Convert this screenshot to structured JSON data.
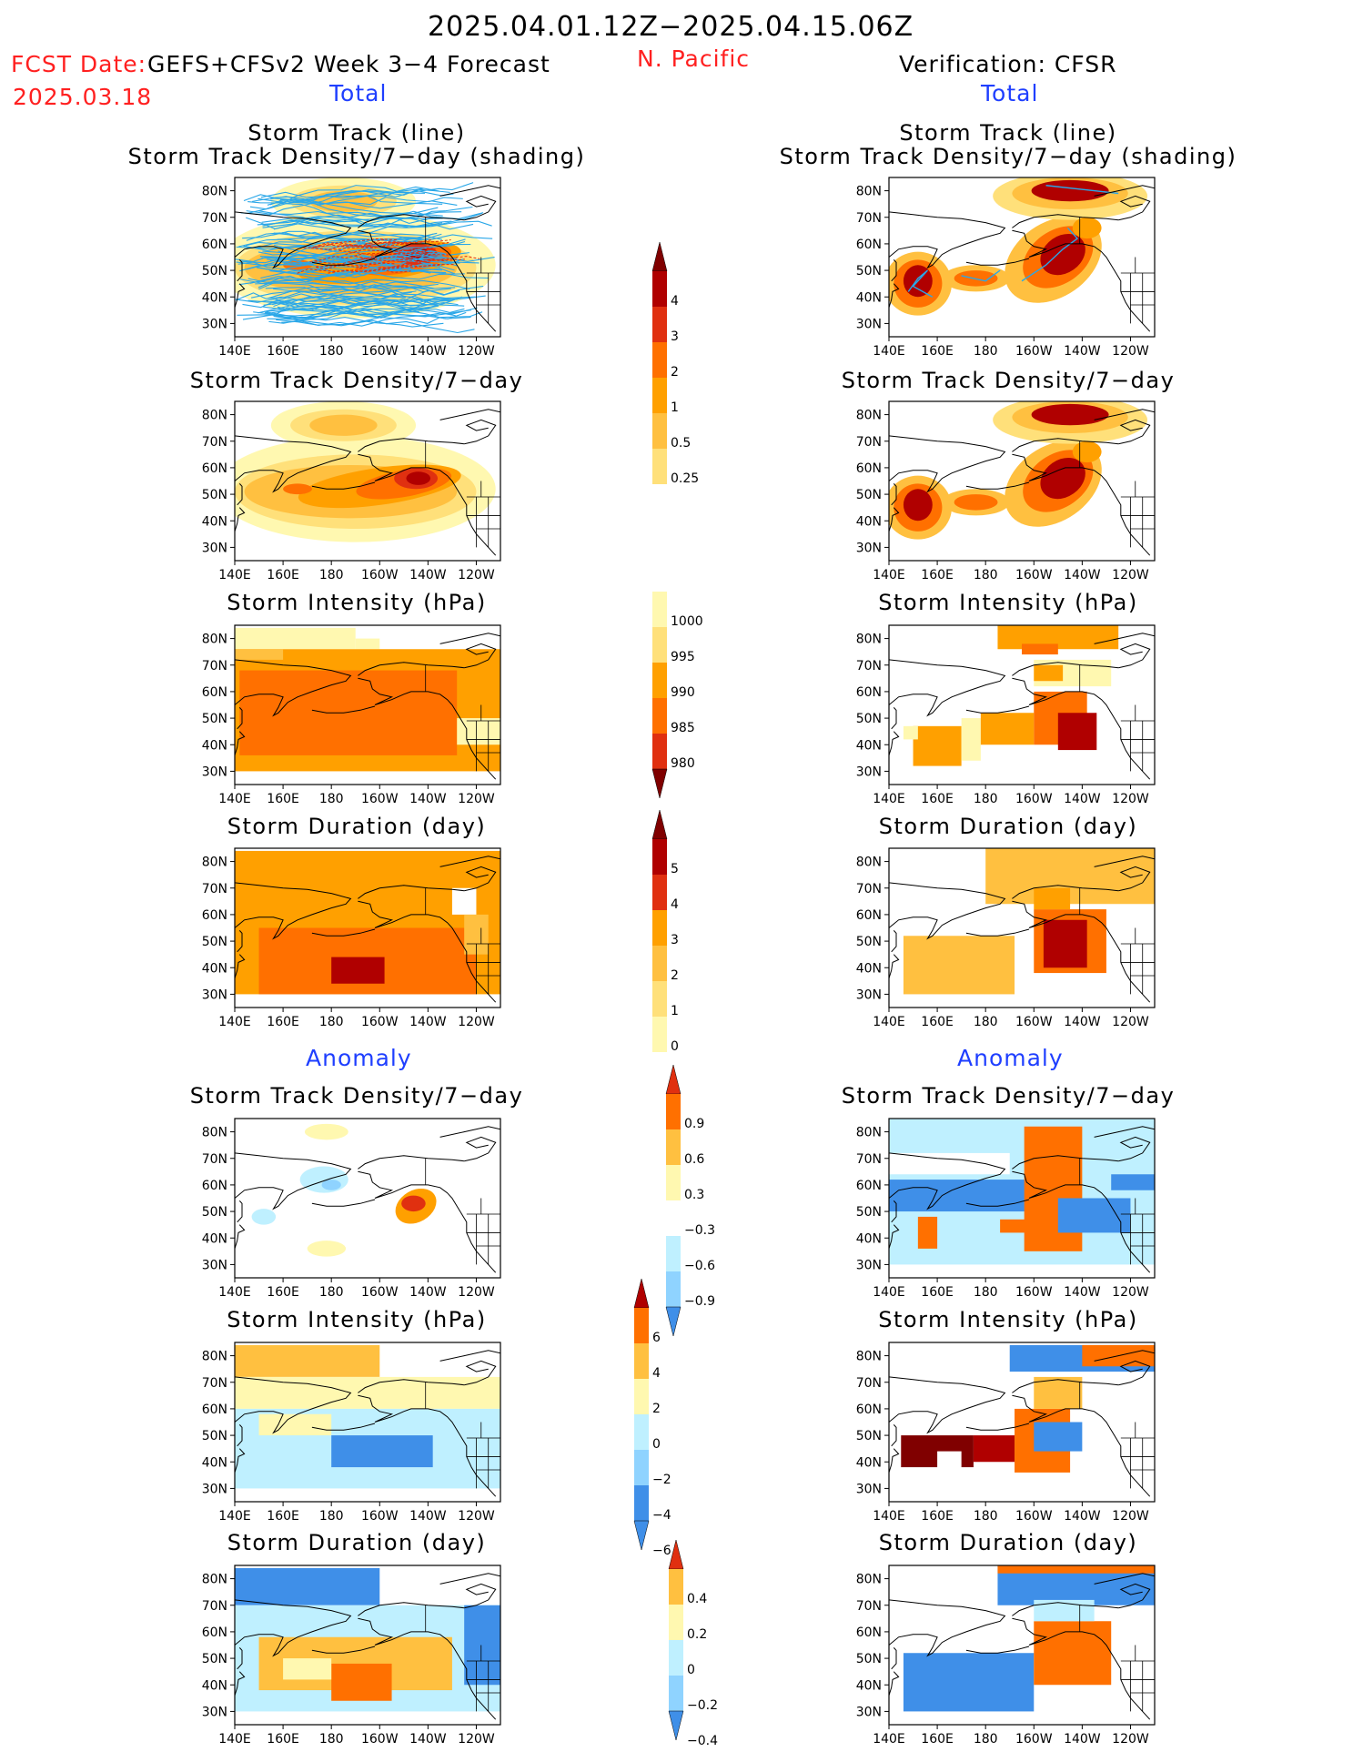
{
  "header": {
    "period": "2025.04.01.12Z−2025.04.15.06Z",
    "fcst_label": "FCST Date:",
    "fcst_model": "GEFS+CFSv2 Week 3−4 Forecast",
    "fcst_date": "2025.03.18",
    "region": "N. Pacific",
    "verification": "Verification: CFSR",
    "total_left": "Total",
    "total_right": "Total",
    "anomaly_left": "Anomaly",
    "anomaly_right": "Anomaly"
  },
  "panel_titles": {
    "track_line": "Storm Track (line)",
    "track_shading": "Storm Track Density/7−day (shading)",
    "density": "Storm Track Density/7−day",
    "intensity": "Storm Intensity (hPa)",
    "duration": "Storm Duration (day)"
  },
  "axes": {
    "lat_labels": [
      "80N",
      "70N",
      "60N",
      "50N",
      "40N",
      "30N"
    ],
    "lon_labels": [
      "140E",
      "160E",
      "180",
      "160W",
      "140W",
      "120W"
    ]
  },
  "colors": {
    "pos": [
      "#fff8b0",
      "#ffe07a",
      "#ffc040",
      "#ffa000",
      "#ff7000",
      "#e03010",
      "#b00000",
      "#800000"
    ],
    "neg": [
      "#bff0ff",
      "#8fd3ff",
      "#3f8fe8",
      "#1f5fd0",
      "#2060f0"
    ],
    "track_line": "#2aa7e8"
  },
  "chart_data": [
    {
      "id": "fc_track",
      "type": "heatmap",
      "title": "Storm Track (line) / Storm Track Density/7−day (shading)",
      "source": "GEFS+CFSv2",
      "colorbar": [
        0.25,
        0.5,
        1,
        2,
        3,
        4
      ]
    },
    {
      "id": "ob_track",
      "type": "heatmap",
      "title": "Storm Track (line) / Storm Track Density/7−day (shading)",
      "source": "CFSR"
    },
    {
      "id": "fc_density",
      "type": "heatmap",
      "title": "Storm Track Density/7−day",
      "source": "GEFS+CFSv2"
    },
    {
      "id": "ob_density",
      "type": "heatmap",
      "title": "Storm Track Density/7−day",
      "source": "CFSR"
    },
    {
      "id": "fc_intensity",
      "type": "heatmap",
      "title": "Storm Intensity (hPa)",
      "colorbar": [
        1000,
        995,
        990,
        985,
        980
      ]
    },
    {
      "id": "ob_intensity",
      "type": "heatmap",
      "title": "Storm Intensity (hPa)"
    },
    {
      "id": "fc_duration",
      "type": "heatmap",
      "title": "Storm Duration (day)",
      "colorbar": [
        5,
        4,
        3,
        2,
        1,
        0
      ]
    },
    {
      "id": "ob_duration",
      "type": "heatmap",
      "title": "Storm Duration (day)"
    },
    {
      "id": "fc_density_anom",
      "type": "heatmap",
      "title": "Storm Track Density/7−day",
      "colorbar": [
        0.9,
        0.6,
        0.3,
        -0.3,
        -0.6,
        -0.9
      ]
    },
    {
      "id": "ob_density_anom",
      "type": "heatmap",
      "title": "Storm Track Density/7−day"
    },
    {
      "id": "fc_intensity_anom",
      "type": "heatmap",
      "title": "Storm Intensity (hPa)",
      "colorbar": [
        6,
        4,
        2,
        0,
        -2,
        -4,
        -6
      ]
    },
    {
      "id": "ob_intensity_anom",
      "type": "heatmap",
      "title": "Storm Intensity (hPa)"
    },
    {
      "id": "fc_duration_anom",
      "type": "heatmap",
      "title": "Storm Duration (day)",
      "colorbar": [
        0.4,
        0.2,
        0,
        -0.2,
        -0.4
      ]
    },
    {
      "id": "ob_duration_anom",
      "type": "heatmap",
      "title": "Storm Duration (day)"
    }
  ],
  "colorbars": [
    {
      "id": "cb_density",
      "labels": [
        "4",
        "3",
        "2",
        "1",
        "0.5",
        "0.25"
      ]
    },
    {
      "id": "cb_intensity",
      "labels": [
        "1000",
        "995",
        "990",
        "985",
        "980"
      ]
    },
    {
      "id": "cb_duration",
      "labels": [
        "5",
        "4",
        "3",
        "2",
        "1",
        "0"
      ]
    },
    {
      "id": "cb_density_anom",
      "labels": [
        "0.9",
        "0.6",
        "0.3",
        "−0.3",
        "−0.6",
        "−0.9"
      ]
    },
    {
      "id": "cb_intensity_anom",
      "labels": [
        "6",
        "4",
        "2",
        "0",
        "−2",
        "−4",
        "−6"
      ]
    },
    {
      "id": "cb_duration_anom",
      "labels": [
        "0.4",
        "0.2",
        "0",
        "−0.2",
        "−0.4"
      ]
    }
  ]
}
